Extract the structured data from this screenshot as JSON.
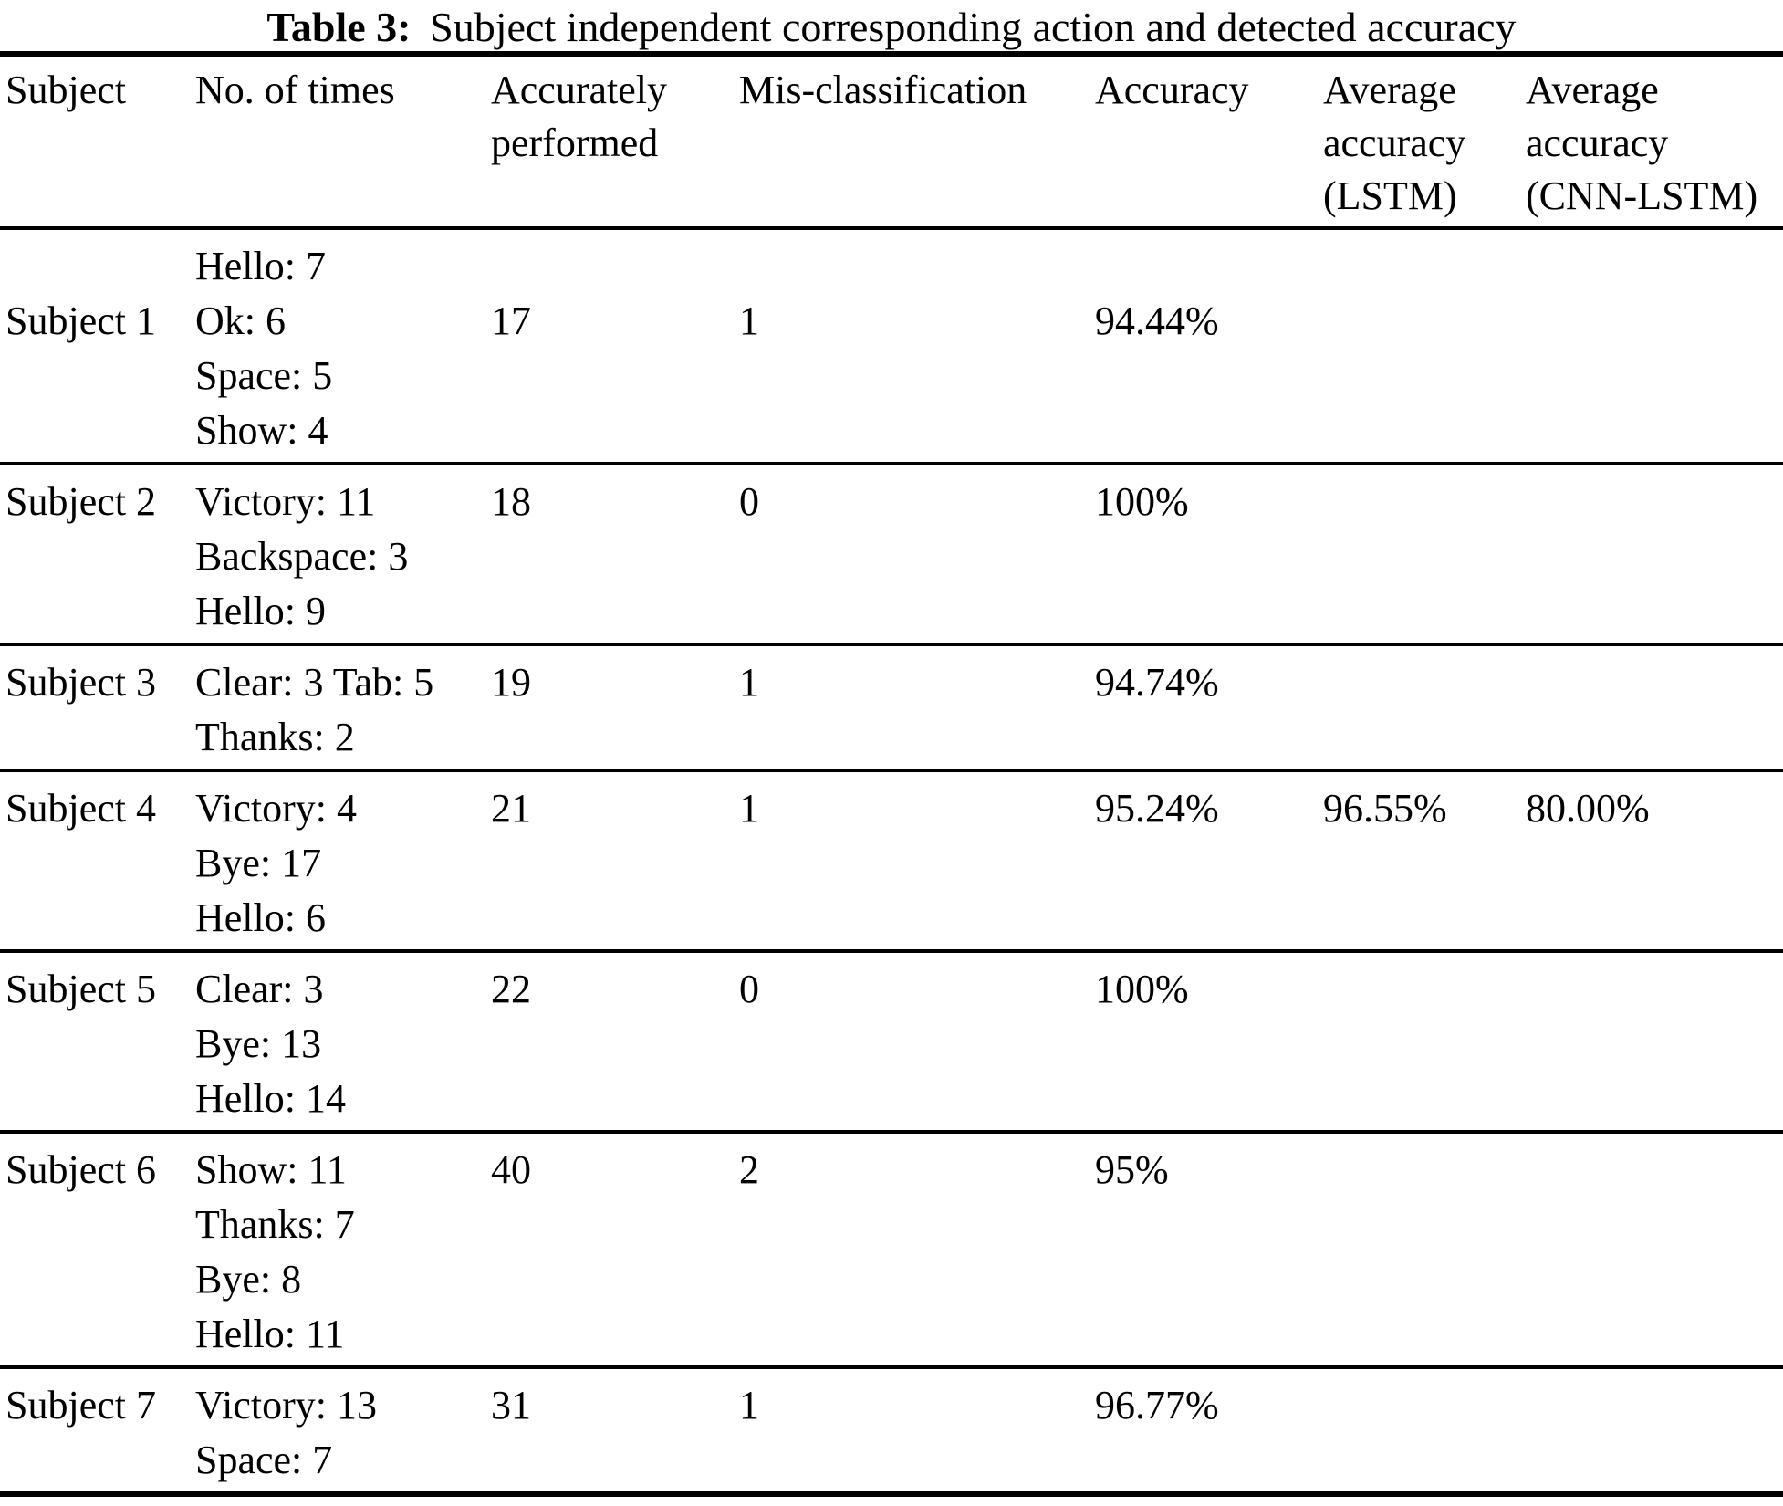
{
  "caption": {
    "label": "Table 3:",
    "text": "Subject independent corresponding action and detected accuracy"
  },
  "table": {
    "columns": [
      {
        "id": "subject",
        "lines": [
          "Subject"
        ]
      },
      {
        "id": "no-of-times",
        "lines": [
          "No. of times"
        ]
      },
      {
        "id": "accurately-performed",
        "lines": [
          "Accurately",
          "performed"
        ]
      },
      {
        "id": "mis-classification",
        "lines": [
          "Mis-classification"
        ]
      },
      {
        "id": "accuracy",
        "lines": [
          "Accuracy"
        ]
      },
      {
        "id": "avg-accuracy-lstm",
        "lines": [
          "Average",
          "accuracy",
          "(LSTM)"
        ]
      },
      {
        "id": "avg-accuracy-cnn-lstm",
        "lines": [
          "Average",
          "accuracy",
          "(CNN-LSTM)"
        ]
      }
    ],
    "rows": [
      {
        "subject": "Subject 1",
        "times": [
          "Hello: 7",
          "Ok: 6",
          "Space: 5",
          "Show: 4"
        ],
        "accurately_performed": "17",
        "mis_classification": "1",
        "accuracy": "94.44%",
        "avg_lstm": "",
        "avg_cnn_lstm": "",
        "values_on_line": 2
      },
      {
        "subject": "Subject 2",
        "times": [
          "Victory: 11",
          "Backspace: 3",
          "Hello: 9"
        ],
        "accurately_performed": "18",
        "mis_classification": "0",
        "accuracy": "100%",
        "avg_lstm": "",
        "avg_cnn_lstm": "",
        "values_on_line": 1
      },
      {
        "subject": "Subject 3",
        "times": [
          "Clear: 3 Tab: 5",
          "Thanks: 2"
        ],
        "accurately_performed": "19",
        "mis_classification": "1",
        "accuracy": "94.74%",
        "avg_lstm": "",
        "avg_cnn_lstm": "",
        "values_on_line": 1
      },
      {
        "subject": "Subject 4",
        "times": [
          "Victory: 4",
          "Bye: 17",
          "Hello: 6"
        ],
        "accurately_performed": "21",
        "mis_classification": "1",
        "accuracy": "95.24%",
        "avg_lstm": "96.55%",
        "avg_cnn_lstm": "80.00%",
        "values_on_line": 1
      },
      {
        "subject": "Subject 5",
        "times": [
          "Clear: 3",
          "Bye: 13",
          "Hello: 14"
        ],
        "accurately_performed": "22",
        "mis_classification": "0",
        "accuracy": "100%",
        "avg_lstm": "",
        "avg_cnn_lstm": "",
        "values_on_line": 1
      },
      {
        "subject": "Subject 6",
        "times": [
          "Show: 11",
          "Thanks: 7",
          "Bye: 8",
          "Hello: 11"
        ],
        "accurately_performed": "40",
        "mis_classification": "2",
        "accuracy": "95%",
        "avg_lstm": "",
        "avg_cnn_lstm": "",
        "values_on_line": 1
      },
      {
        "subject": "Subject 7",
        "times": [
          "Victory: 13",
          "Space: 7"
        ],
        "accurately_performed": "31",
        "mis_classification": "1",
        "accuracy": "96.77%",
        "avg_lstm": "",
        "avg_cnn_lstm": "",
        "values_on_line": 1
      }
    ]
  },
  "colors": {
    "text": "#000000",
    "background": "#ffffff",
    "rule": "#000000"
  }
}
